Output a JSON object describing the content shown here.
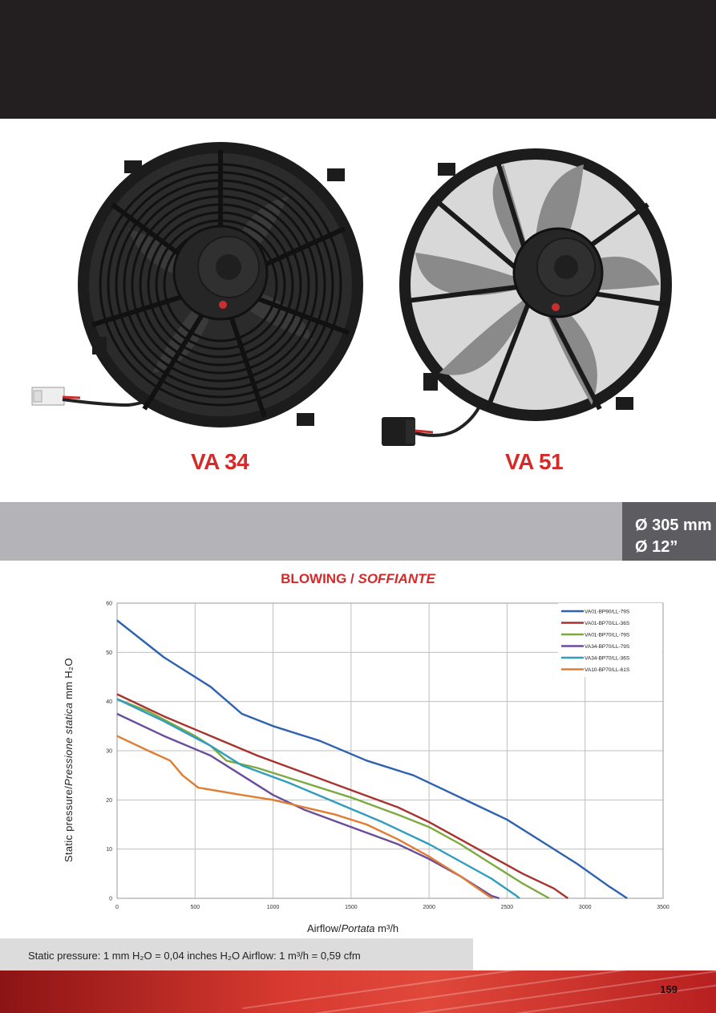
{
  "models": {
    "left": "VA 34",
    "right": "VA 51"
  },
  "size": {
    "mm": "Ø 305 mm",
    "inch": "Ø 12”"
  },
  "chart_title": {
    "main": "BLOWING / ",
    "italic": "SOFFIANTE"
  },
  "axis": {
    "ylabel_main": "Static pressure/",
    "ylabel_italic": "Pressione statica",
    "ylabel_unit": " mm H₂O",
    "xlabel_main": "Airflow/",
    "xlabel_italic": "Portata",
    "xlabel_unit": " m³/h"
  },
  "footer": {
    "note": "Static pressure: 1 mm H₂O = 0,04 inches H₂O     Airflow: 1 m³/h = 0,59 cfm",
    "page": "159"
  },
  "chart_data": {
    "type": "line",
    "xlim": [
      0,
      3500
    ],
    "ylim": [
      0,
      60
    ],
    "xticks": [
      0,
      500,
      1000,
      1500,
      2000,
      2500,
      3000,
      3500
    ],
    "yticks": [
      0,
      10,
      20,
      30,
      40,
      50,
      60
    ],
    "grid": true,
    "legend_position": "top-right",
    "series": [
      {
        "name": "VA01-BP90/LL-79S",
        "color": "#2e62b0",
        "points": [
          [
            0,
            56.5
          ],
          [
            300,
            49
          ],
          [
            600,
            43
          ],
          [
            800,
            37.5
          ],
          [
            1000,
            35
          ],
          [
            1300,
            32
          ],
          [
            1600,
            28
          ],
          [
            1900,
            25
          ],
          [
            2100,
            22
          ],
          [
            2300,
            19
          ],
          [
            2500,
            16
          ],
          [
            2700,
            12
          ],
          [
            2950,
            7
          ],
          [
            3150,
            2.5
          ],
          [
            3270,
            0
          ]
        ]
      },
      {
        "name": "VA01-BP70/LL-36S",
        "color": "#a8322d",
        "points": [
          [
            0,
            41.5
          ],
          [
            300,
            37
          ],
          [
            600,
            33
          ],
          [
            900,
            29
          ],
          [
            1200,
            25.5
          ],
          [
            1500,
            22
          ],
          [
            1800,
            18.5
          ],
          [
            2000,
            15.5
          ],
          [
            2200,
            12
          ],
          [
            2400,
            8.5
          ],
          [
            2600,
            5
          ],
          [
            2800,
            2
          ],
          [
            2890,
            0
          ]
        ]
      },
      {
        "name": "VA01-BP70/LL-79S",
        "color": "#7caa3f",
        "points": [
          [
            0,
            40.5
          ],
          [
            200,
            38
          ],
          [
            500,
            33
          ],
          [
            600,
            31
          ],
          [
            700,
            28
          ],
          [
            900,
            26.5
          ],
          [
            1200,
            23.5
          ],
          [
            1500,
            20.5
          ],
          [
            1800,
            17
          ],
          [
            2000,
            14.5
          ],
          [
            2200,
            11
          ],
          [
            2400,
            7
          ],
          [
            2600,
            3
          ],
          [
            2770,
            0
          ]
        ]
      },
      {
        "name": "VA34-BP70/LL-79S",
        "color": "#6a4c9c",
        "points": [
          [
            0,
            37.5
          ],
          [
            300,
            33
          ],
          [
            600,
            29
          ],
          [
            800,
            25
          ],
          [
            1000,
            21
          ],
          [
            1200,
            18
          ],
          [
            1500,
            14.5
          ],
          [
            1800,
            11
          ],
          [
            2000,
            8
          ],
          [
            2200,
            4.5
          ],
          [
            2400,
            0.5
          ],
          [
            2450,
            0
          ]
        ]
      },
      {
        "name": "VA34-BP70/LL-36S",
        "color": "#2f9cc0",
        "points": [
          [
            0,
            40.5
          ],
          [
            300,
            36
          ],
          [
            600,
            31
          ],
          [
            800,
            27
          ],
          [
            1100,
            23.5
          ],
          [
            1400,
            19.5
          ],
          [
            1700,
            15.5
          ],
          [
            2000,
            11
          ],
          [
            2200,
            7.5
          ],
          [
            2400,
            4
          ],
          [
            2560,
            0.5
          ],
          [
            2580,
            0
          ]
        ]
      },
      {
        "name": "VA10-BP70/LL-61S",
        "color": "#e07d33",
        "points": [
          [
            0,
            33
          ],
          [
            200,
            30
          ],
          [
            340,
            28
          ],
          [
            420,
            25
          ],
          [
            520,
            22.5
          ],
          [
            800,
            21
          ],
          [
            1000,
            20
          ],
          [
            1200,
            18.5
          ],
          [
            1400,
            17
          ],
          [
            1600,
            15
          ],
          [
            1800,
            12
          ],
          [
            2000,
            8.5
          ],
          [
            2200,
            4.5
          ],
          [
            2380,
            0.5
          ],
          [
            2410,
            0
          ]
        ]
      }
    ]
  }
}
